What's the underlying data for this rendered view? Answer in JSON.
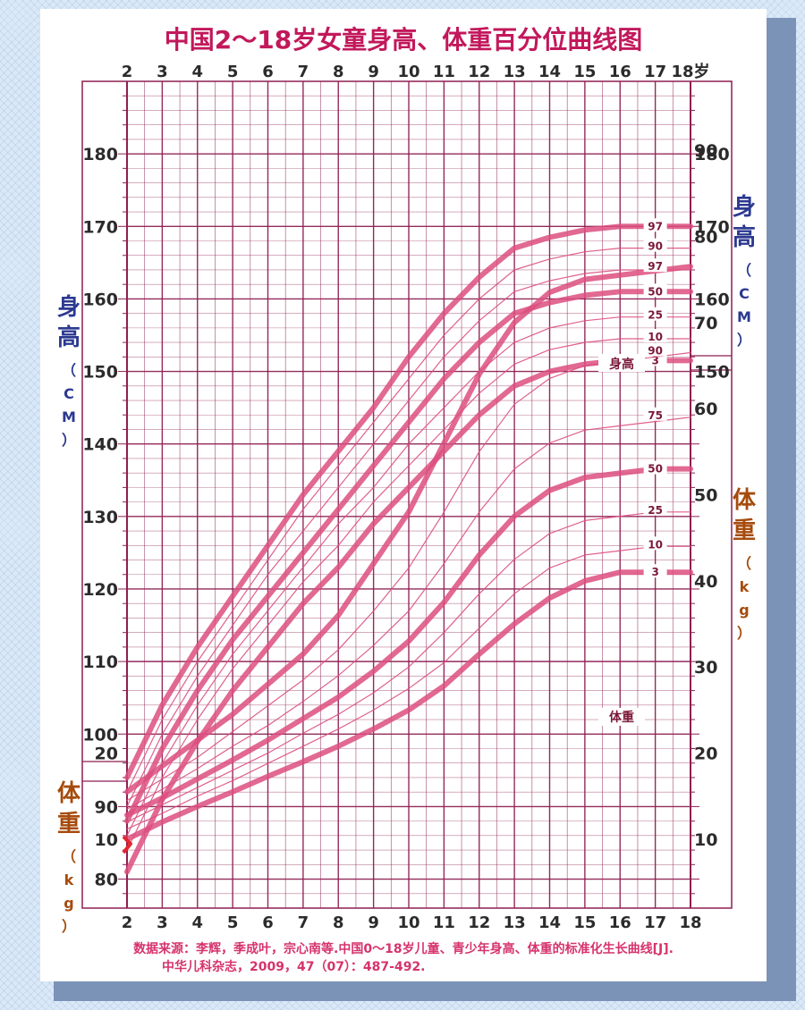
{
  "chart_data": {
    "type": "line",
    "title": "中国2～18岁女童身高、体重百分位曲线图",
    "x_ticks_top": [
      "2",
      "3",
      "4",
      "5",
      "6",
      "7",
      "8",
      "9",
      "10",
      "11",
      "12",
      "13",
      "14",
      "15",
      "16",
      "17",
      "18岁"
    ],
    "x_ticks_bottom": [
      "2",
      "3",
      "4",
      "5",
      "6",
      "7",
      "8",
      "9",
      "10",
      "11",
      "12",
      "13",
      "14",
      "15",
      "16",
      "17",
      "18"
    ],
    "xlim": [
      2,
      18
    ],
    "height": {
      "axis_label": [
        "身",
        "高",
        "（",
        "C",
        "M",
        "）"
      ],
      "unit": "cm",
      "ylim": [
        76,
        190
      ],
      "ticks": [
        80,
        90,
        100,
        110,
        120,
        130,
        140,
        150,
        160,
        170,
        180
      ],
      "ticks_right": [
        150,
        160,
        170,
        180
      ],
      "caption": "身高",
      "x": [
        2,
        3,
        4,
        5,
        6,
        7,
        8,
        9,
        10,
        11,
        12,
        13,
        14,
        15,
        16,
        17,
        18
      ],
      "series": [
        {
          "name": "97",
          "values": [
            94,
            104,
            112,
            119,
            126,
            133,
            139,
            145,
            152,
            158,
            163,
            167,
            168.5,
            169.5,
            170,
            170,
            170
          ]
        },
        {
          "name": "90",
          "values": [
            92,
            102,
            110,
            117,
            124,
            131,
            137,
            143,
            149,
            155,
            160,
            164,
            165.5,
            166.5,
            167,
            167,
            167
          ]
        },
        {
          "name": "75",
          "values": [
            90,
            100,
            108,
            115,
            122,
            128,
            134,
            140,
            146,
            152,
            157,
            161,
            162.5,
            163.5,
            164,
            164,
            164
          ]
        },
        {
          "name": "50",
          "values": [
            88,
            98,
            106,
            113,
            119,
            125,
            131,
            137,
            143,
            149,
            154,
            158,
            159.5,
            160.5,
            161,
            161,
            161
          ]
        },
        {
          "name": "25",
          "values": [
            86,
            96,
            104,
            111,
            117,
            123,
            129,
            134,
            140,
            145,
            150,
            154,
            156,
            157,
            157.5,
            157.5,
            157.5
          ]
        },
        {
          "name": "10",
          "values": [
            84,
            94,
            102,
            109,
            115,
            121,
            126,
            132,
            137,
            142,
            147,
            151,
            153,
            154,
            154.5,
            154.5,
            154.5
          ]
        },
        {
          "name": "3",
          "values": [
            81,
            91,
            99,
            106,
            112,
            118,
            123,
            129,
            134,
            139,
            144,
            148,
            150,
            151,
            151.5,
            151.5,
            151.5
          ]
        }
      ]
    },
    "weight": {
      "axis_label": [
        "体",
        "重",
        "（",
        "k",
        "g",
        "）"
      ],
      "unit": "kg",
      "ylim": [
        2,
        98
      ],
      "ticks_left": [
        10,
        20
      ],
      "ticks_right": [
        10,
        20,
        30,
        40,
        50,
        60,
        70,
        80,
        90
      ],
      "caption": "体重",
      "x": [
        2,
        3,
        4,
        5,
        6,
        7,
        8,
        9,
        10,
        11,
        12,
        13,
        14,
        15,
        16,
        17,
        18
      ],
      "series": [
        {
          "name": "97",
          "values": [
            15.5,
            18.5,
            21.5,
            24.5,
            28,
            31.5,
            36,
            42,
            48,
            56,
            64,
            70,
            73.5,
            75,
            75.5,
            76,
            76.5
          ]
        },
        {
          "name": "90",
          "values": [
            14.5,
            17,
            19.5,
            22.5,
            25.5,
            28.5,
            32,
            36.5,
            41.5,
            48,
            55,
            60.5,
            63.5,
            65,
            65.5,
            66,
            66.5
          ]
        },
        {
          "name": "75",
          "values": [
            13.5,
            15.8,
            18.2,
            20.8,
            23.2,
            26,
            29,
            32.5,
            36.5,
            42,
            48,
            53,
            56,
            57.5,
            58,
            58.5,
            59
          ]
        },
        {
          "name": "50",
          "values": [
            12.8,
            14.8,
            17,
            19.2,
            21.5,
            24,
            26.5,
            29.5,
            33,
            37.5,
            43,
            47.5,
            50.5,
            52,
            52.5,
            53,
            53
          ]
        },
        {
          "name": "25",
          "values": [
            12,
            14,
            16,
            18,
            20,
            22.3,
            24.5,
            27,
            30,
            34,
            38.5,
            42.5,
            45.5,
            47,
            47.5,
            48,
            48
          ]
        },
        {
          "name": "10",
          "values": [
            11.2,
            13,
            15,
            16.8,
            18.8,
            20.8,
            22.8,
            25,
            27.5,
            30.5,
            34.5,
            38.5,
            41.5,
            43,
            43.5,
            44,
            44
          ]
        },
        {
          "name": "3",
          "values": [
            10,
            12,
            13.8,
            15.5,
            17.3,
            19,
            20.8,
            22.8,
            25,
            27.8,
            31.5,
            35,
            38,
            40,
            41,
            41,
            41
          ]
        }
      ]
    },
    "source_lines": [
      "数据来源：李辉，季成叶，宗心南等.中国0～18岁儿童、青少年身高、体重的标准化生长曲线[J].",
      "中华儿科杂志，2009，47（07）：487-492."
    ],
    "colors": {
      "title": "#c2185b",
      "grid": "#8e1f52",
      "curve": "#dc4f7f",
      "height_label": "#2b3990",
      "weight_label": "#a64b0c",
      "label_text": "#7a1838",
      "source": "#d6336c"
    }
  }
}
